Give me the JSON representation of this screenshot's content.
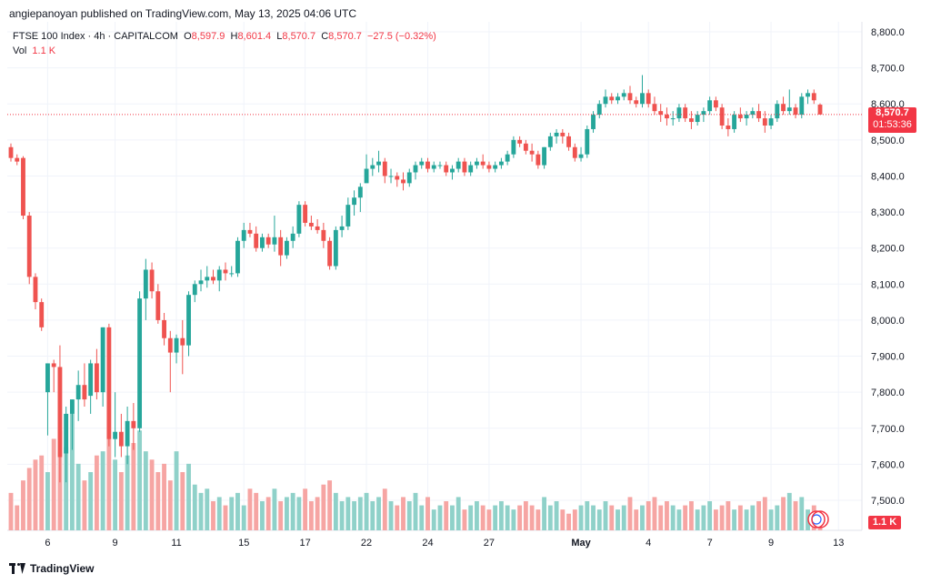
{
  "publisher": "angiepanoyan published on TradingView.com, May 13, 2025 04:06 UTC",
  "legend": {
    "symbol": "FTSE 100 Index · 4h · CAPITALCOM",
    "o_label": "O",
    "o": "8,597.9",
    "h_label": "H",
    "h": "8,601.4",
    "l_label": "L",
    "l": "8,570.7",
    "c_label": "C",
    "c": "8,570.7",
    "change": "−27.5 (−0.32%)",
    "vol_label": "Vol",
    "vol": "1.1 K"
  },
  "price_tag": {
    "price": "8,570.7",
    "countdown": "01:53:36"
  },
  "vol_tag": "1.1 K",
  "footer": {
    "brand": "TradingView"
  },
  "colors": {
    "up": "#26a69a",
    "down": "#ef5350",
    "vol_up": "#8fd1c9",
    "vol_down": "#f6a5a3",
    "grid": "#f0f3fa",
    "last_price": "#f23645"
  },
  "chart_data": {
    "type": "candlestick",
    "timeframe": "4h",
    "ylim": [
      7430,
      8830
    ],
    "y_ticks": [
      7500,
      7600,
      7700,
      7800,
      7900,
      8000,
      8100,
      8200,
      8300,
      8400,
      8500,
      8600,
      8700,
      8800
    ],
    "y_tick_labels": [
      "7,500.0",
      "7,600.0",
      "7,700.0",
      "7,800.0",
      "7,900.0",
      "8,000.0",
      "8,100.0",
      "8,200.0",
      "8,300.0",
      "8,400.0",
      "8,500.0",
      "8,600.0",
      "8,700.0",
      "8,800.0"
    ],
    "x_ticks": [
      {
        "label": "6",
        "index": 6
      },
      {
        "label": "9",
        "index": 17
      },
      {
        "label": "11",
        "index": 27
      },
      {
        "label": "15",
        "index": 38
      },
      {
        "label": "17",
        "index": 48
      },
      {
        "label": "22",
        "index": 58
      },
      {
        "label": "24",
        "index": 68
      },
      {
        "label": "27",
        "index": 78
      },
      {
        "label": "May",
        "index": 93
      },
      {
        "label": "4",
        "index": 104
      },
      {
        "label": "7",
        "index": 114
      },
      {
        "label": "9",
        "index": 124
      },
      {
        "label": "13",
        "index": 135
      }
    ],
    "last_price": 8570.7,
    "candles": [
      {
        "o": 8480,
        "h": 8490,
        "l": 8440,
        "c": 8450,
        "v": 45
      },
      {
        "o": 8450,
        "h": 8460,
        "l": 8430,
        "c": 8440,
        "v": 30
      },
      {
        "o": 8450,
        "h": 8455,
        "l": 8280,
        "c": 8290,
        "v": 60
      },
      {
        "o": 8290,
        "h": 8300,
        "l": 8100,
        "c": 8120,
        "v": 75
      },
      {
        "o": 8120,
        "h": 8130,
        "l": 8030,
        "c": 8050,
        "v": 85
      },
      {
        "o": 8050,
        "h": 8060,
        "l": 7970,
        "c": 7980,
        "v": 90
      },
      {
        "o": 7800,
        "h": 7880,
        "l": 7680,
        "c": 7880,
        "v": 70
      },
      {
        "o": 7880,
        "h": 7890,
        "l": 7800,
        "c": 7870,
        "v": 110
      },
      {
        "o": 7870,
        "h": 7930,
        "l": 7550,
        "c": 7620,
        "v": 120
      },
      {
        "o": 7630,
        "h": 7760,
        "l": 7550,
        "c": 7740,
        "v": 100
      },
      {
        "o": 7740,
        "h": 7780,
        "l": 7640,
        "c": 7780,
        "v": 140
      },
      {
        "o": 7780,
        "h": 7860,
        "l": 7720,
        "c": 7820,
        "v": 80
      },
      {
        "o": 7820,
        "h": 7880,
        "l": 7760,
        "c": 7780,
        "v": 60
      },
      {
        "o": 7790,
        "h": 7890,
        "l": 7740,
        "c": 7880,
        "v": 70
      },
      {
        "o": 7880,
        "h": 7920,
        "l": 7780,
        "c": 7800,
        "v": 90
      },
      {
        "o": 7800,
        "h": 7980,
        "l": 7760,
        "c": 7980,
        "v": 95
      },
      {
        "o": 7980,
        "h": 7990,
        "l": 7650,
        "c": 7670,
        "v": 110
      },
      {
        "o": 7670,
        "h": 7800,
        "l": 7620,
        "c": 7690,
        "v": 85
      },
      {
        "o": 7690,
        "h": 7740,
        "l": 7620,
        "c": 7650,
        "v": 70
      },
      {
        "o": 7650,
        "h": 7760,
        "l": 7600,
        "c": 7720,
        "v": 90
      },
      {
        "o": 7720,
        "h": 7770,
        "l": 7640,
        "c": 7700,
        "v": 105
      },
      {
        "o": 7700,
        "h": 8080,
        "l": 7690,
        "c": 8060,
        "v": 120
      },
      {
        "o": 8060,
        "h": 8170,
        "l": 8000,
        "c": 8140,
        "v": 95
      },
      {
        "o": 8140,
        "h": 8160,
        "l": 8060,
        "c": 8080,
        "v": 85
      },
      {
        "o": 8080,
        "h": 8100,
        "l": 7990,
        "c": 8000,
        "v": 70
      },
      {
        "o": 8000,
        "h": 8020,
        "l": 7930,
        "c": 7950,
        "v": 80
      },
      {
        "o": 7950,
        "h": 7970,
        "l": 7800,
        "c": 7910,
        "v": 60
      },
      {
        "o": 7910,
        "h": 7960,
        "l": 7880,
        "c": 7950,
        "v": 95
      },
      {
        "o": 7950,
        "h": 8000,
        "l": 7850,
        "c": 7930,
        "v": 70
      },
      {
        "o": 7930,
        "h": 8080,
        "l": 7900,
        "c": 8070,
        "v": 80
      },
      {
        "o": 8070,
        "h": 8110,
        "l": 8050,
        "c": 8100,
        "v": 55
      },
      {
        "o": 8100,
        "h": 8140,
        "l": 8080,
        "c": 8110,
        "v": 45
      },
      {
        "o": 8110,
        "h": 8150,
        "l": 8090,
        "c": 8120,
        "v": 50
      },
      {
        "o": 8120,
        "h": 8140,
        "l": 8100,
        "c": 8110,
        "v": 35
      },
      {
        "o": 8110,
        "h": 8150,
        "l": 8080,
        "c": 8140,
        "v": 40
      },
      {
        "o": 8140,
        "h": 8160,
        "l": 8110,
        "c": 8130,
        "v": 30
      },
      {
        "o": 8130,
        "h": 8150,
        "l": 8120,
        "c": 8130,
        "v": 40
      },
      {
        "o": 8130,
        "h": 8230,
        "l": 8120,
        "c": 8220,
        "v": 45
      },
      {
        "o": 8220,
        "h": 8270,
        "l": 8200,
        "c": 8250,
        "v": 30
      },
      {
        "o": 8250,
        "h": 8270,
        "l": 8230,
        "c": 8240,
        "v": 50
      },
      {
        "o": 8240,
        "h": 8260,
        "l": 8190,
        "c": 8200,
        "v": 45
      },
      {
        "o": 8200,
        "h": 8240,
        "l": 8190,
        "c": 8230,
        "v": 35
      },
      {
        "o": 8230,
        "h": 8240,
        "l": 8200,
        "c": 8210,
        "v": 40
      },
      {
        "o": 8210,
        "h": 8290,
        "l": 8190,
        "c": 8230,
        "v": 50
      },
      {
        "o": 8230,
        "h": 8250,
        "l": 8150,
        "c": 8180,
        "v": 35
      },
      {
        "o": 8180,
        "h": 8230,
        "l": 8170,
        "c": 8220,
        "v": 40
      },
      {
        "o": 8220,
        "h": 8260,
        "l": 8200,
        "c": 8240,
        "v": 45
      },
      {
        "o": 8240,
        "h": 8330,
        "l": 8230,
        "c": 8320,
        "v": 40
      },
      {
        "o": 8320,
        "h": 8330,
        "l": 8260,
        "c": 8270,
        "v": 50
      },
      {
        "o": 8270,
        "h": 8290,
        "l": 8250,
        "c": 8260,
        "v": 35
      },
      {
        "o": 8260,
        "h": 8280,
        "l": 8240,
        "c": 8250,
        "v": 40
      },
      {
        "o": 8250,
        "h": 8270,
        "l": 8200,
        "c": 8220,
        "v": 55
      },
      {
        "o": 8220,
        "h": 8230,
        "l": 8140,
        "c": 8150,
        "v": 60
      },
      {
        "o": 8150,
        "h": 8260,
        "l": 8140,
        "c": 8250,
        "v": 45
      },
      {
        "o": 8250,
        "h": 8290,
        "l": 8230,
        "c": 8260,
        "v": 35
      },
      {
        "o": 8260,
        "h": 8340,
        "l": 8250,
        "c": 8320,
        "v": 40
      },
      {
        "o": 8320,
        "h": 8360,
        "l": 8290,
        "c": 8340,
        "v": 35
      },
      {
        "o": 8340,
        "h": 8380,
        "l": 8300,
        "c": 8370,
        "v": 40
      },
      {
        "o": 8380,
        "h": 8460,
        "l": 8390,
        "c": 8420,
        "v": 45
      },
      {
        "o": 8420,
        "h": 8450,
        "l": 8400,
        "c": 8430,
        "v": 35
      },
      {
        "o": 8430,
        "h": 8470,
        "l": 8410,
        "c": 8440,
        "v": 40
      },
      {
        "o": 8440,
        "h": 8450,
        "l": 8380,
        "c": 8400,
        "v": 50
      },
      {
        "o": 8400,
        "h": 8420,
        "l": 8380,
        "c": 8400,
        "v": 35
      },
      {
        "o": 8400,
        "h": 8410,
        "l": 8370,
        "c": 8390,
        "v": 30
      },
      {
        "o": 8390,
        "h": 8410,
        "l": 8360,
        "c": 8380,
        "v": 40
      },
      {
        "o": 8380,
        "h": 8420,
        "l": 8370,
        "c": 8410,
        "v": 35
      },
      {
        "o": 8410,
        "h": 8440,
        "l": 8390,
        "c": 8430,
        "v": 45
      },
      {
        "o": 8430,
        "h": 8450,
        "l": 8420,
        "c": 8440,
        "v": 30
      },
      {
        "o": 8440,
        "h": 8450,
        "l": 8410,
        "c": 8420,
        "v": 40
      },
      {
        "o": 8420,
        "h": 8440,
        "l": 8410,
        "c": 8430,
        "v": 25
      },
      {
        "o": 8430,
        "h": 8440,
        "l": 8420,
        "c": 8430,
        "v": 30
      },
      {
        "o": 8430,
        "h": 8440,
        "l": 8400,
        "c": 8410,
        "v": 35
      },
      {
        "o": 8410,
        "h": 8430,
        "l": 8390,
        "c": 8420,
        "v": 30
      },
      {
        "o": 8420,
        "h": 8450,
        "l": 8410,
        "c": 8440,
        "v": 40
      },
      {
        "o": 8440,
        "h": 8450,
        "l": 8400,
        "c": 8410,
        "v": 25
      },
      {
        "o": 8410,
        "h": 8440,
        "l": 8400,
        "c": 8430,
        "v": 30
      },
      {
        "o": 8430,
        "h": 8450,
        "l": 8420,
        "c": 8440,
        "v": 35
      },
      {
        "o": 8440,
        "h": 8460,
        "l": 8420,
        "c": 8430,
        "v": 30
      },
      {
        "o": 8430,
        "h": 8440,
        "l": 8410,
        "c": 8420,
        "v": 25
      },
      {
        "o": 8420,
        "h": 8440,
        "l": 8410,
        "c": 8430,
        "v": 30
      },
      {
        "o": 8430,
        "h": 8450,
        "l": 8420,
        "c": 8440,
        "v": 35
      },
      {
        "o": 8440,
        "h": 8470,
        "l": 8430,
        "c": 8460,
        "v": 30
      },
      {
        "o": 8460,
        "h": 8510,
        "l": 8450,
        "c": 8500,
        "v": 25
      },
      {
        "o": 8500,
        "h": 8510,
        "l": 8480,
        "c": 8490,
        "v": 30
      },
      {
        "o": 8490,
        "h": 8500,
        "l": 8460,
        "c": 8470,
        "v": 35
      },
      {
        "o": 8470,
        "h": 8490,
        "l": 8440,
        "c": 8460,
        "v": 30
      },
      {
        "o": 8460,
        "h": 8470,
        "l": 8420,
        "c": 8430,
        "v": 25
      },
      {
        "o": 8430,
        "h": 8480,
        "l": 8420,
        "c": 8480,
        "v": 40
      },
      {
        "o": 8480,
        "h": 8520,
        "l": 8470,
        "c": 8510,
        "v": 30
      },
      {
        "o": 8510,
        "h": 8530,
        "l": 8490,
        "c": 8520,
        "v": 35
      },
      {
        "o": 8520,
        "h": 8530,
        "l": 8490,
        "c": 8510,
        "v": 25
      },
      {
        "o": 8510,
        "h": 8520,
        "l": 8470,
        "c": 8480,
        "v": 20
      },
      {
        "o": 8480,
        "h": 8490,
        "l": 8440,
        "c": 8450,
        "v": 25
      },
      {
        "o": 8450,
        "h": 8480,
        "l": 8440,
        "c": 8460,
        "v": 30
      },
      {
        "o": 8460,
        "h": 8540,
        "l": 8450,
        "c": 8530,
        "v": 35
      },
      {
        "o": 8530,
        "h": 8580,
        "l": 8520,
        "c": 8570,
        "v": 30
      },
      {
        "o": 8570,
        "h": 8610,
        "l": 8560,
        "c": 8600,
        "v": 25
      },
      {
        "o": 8600,
        "h": 8640,
        "l": 8590,
        "c": 8620,
        "v": 35
      },
      {
        "o": 8620,
        "h": 8630,
        "l": 8600,
        "c": 8610,
        "v": 30
      },
      {
        "o": 8610,
        "h": 8630,
        "l": 8600,
        "c": 8620,
        "v": 25
      },
      {
        "o": 8620,
        "h": 8640,
        "l": 8610,
        "c": 8630,
        "v": 30
      },
      {
        "o": 8630,
        "h": 8650,
        "l": 8600,
        "c": 8610,
        "v": 40
      },
      {
        "o": 8610,
        "h": 8620,
        "l": 8590,
        "c": 8600,
        "v": 25
      },
      {
        "o": 8600,
        "h": 8680,
        "l": 8590,
        "c": 8630,
        "v": 30
      },
      {
        "o": 8630,
        "h": 8640,
        "l": 8590,
        "c": 8600,
        "v": 35
      },
      {
        "o": 8600,
        "h": 8620,
        "l": 8570,
        "c": 8580,
        "v": 40
      },
      {
        "o": 8580,
        "h": 8600,
        "l": 8550,
        "c": 8570,
        "v": 30
      },
      {
        "o": 8570,
        "h": 8590,
        "l": 8540,
        "c": 8560,
        "v": 35
      },
      {
        "o": 8560,
        "h": 8580,
        "l": 8540,
        "c": 8560,
        "v": 30
      },
      {
        "o": 8560,
        "h": 8600,
        "l": 8550,
        "c": 8590,
        "v": 25
      },
      {
        "o": 8590,
        "h": 8600,
        "l": 8550,
        "c": 8560,
        "v": 30
      },
      {
        "o": 8560,
        "h": 8580,
        "l": 8530,
        "c": 8550,
        "v": 35
      },
      {
        "o": 8550,
        "h": 8580,
        "l": 8540,
        "c": 8570,
        "v": 25
      },
      {
        "o": 8570,
        "h": 8590,
        "l": 8550,
        "c": 8580,
        "v": 30
      },
      {
        "o": 8580,
        "h": 8620,
        "l": 8570,
        "c": 8610,
        "v": 35
      },
      {
        "o": 8610,
        "h": 8620,
        "l": 8580,
        "c": 8590,
        "v": 25
      },
      {
        "o": 8590,
        "h": 8600,
        "l": 8530,
        "c": 8540,
        "v": 30
      },
      {
        "o": 8540,
        "h": 8560,
        "l": 8510,
        "c": 8530,
        "v": 35
      },
      {
        "o": 8530,
        "h": 8580,
        "l": 8520,
        "c": 8570,
        "v": 25
      },
      {
        "o": 8570,
        "h": 8590,
        "l": 8550,
        "c": 8560,
        "v": 30
      },
      {
        "o": 8560,
        "h": 8580,
        "l": 8540,
        "c": 8570,
        "v": 25
      },
      {
        "o": 8570,
        "h": 8590,
        "l": 8560,
        "c": 8580,
        "v": 30
      },
      {
        "o": 8580,
        "h": 8600,
        "l": 8550,
        "c": 8560,
        "v": 35
      },
      {
        "o": 8560,
        "h": 8580,
        "l": 8520,
        "c": 8540,
        "v": 40
      },
      {
        "o": 8540,
        "h": 8570,
        "l": 8530,
        "c": 8560,
        "v": 25
      },
      {
        "o": 8560,
        "h": 8610,
        "l": 8550,
        "c": 8600,
        "v": 30
      },
      {
        "o": 8600,
        "h": 8620,
        "l": 8570,
        "c": 8580,
        "v": 40
      },
      {
        "o": 8580,
        "h": 8640,
        "l": 8570,
        "c": 8590,
        "v": 45
      },
      {
        "o": 8590,
        "h": 8600,
        "l": 8560,
        "c": 8570,
        "v": 35
      },
      {
        "o": 8570,
        "h": 8630,
        "l": 8560,
        "c": 8620,
        "v": 40
      },
      {
        "o": 8620,
        "h": 8640,
        "l": 8600,
        "c": 8630,
        "v": 25
      },
      {
        "o": 8630,
        "h": 8640,
        "l": 8600,
        "c": 8610,
        "v": 30
      },
      {
        "o": 8597.9,
        "h": 8601.4,
        "l": 8570.7,
        "c": 8570.7,
        "v": 20
      }
    ]
  }
}
